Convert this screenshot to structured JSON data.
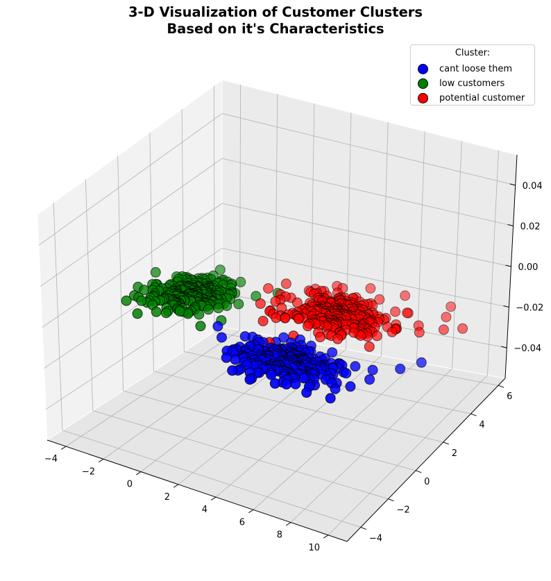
{
  "chart_data": {
    "type": "scatter",
    "projection": "3d",
    "title_line1": "3-D Visualization of Customer Clusters",
    "title_line2": "Based on it's Characteristics",
    "xlabel": "",
    "ylabel": "",
    "zlabel": "",
    "x_ticks": [
      "−4",
      "−2",
      "0",
      "2",
      "4",
      "6",
      "8",
      "10"
    ],
    "y_ticks": [
      "−4",
      "−2",
      "0",
      "2",
      "4",
      "6"
    ],
    "z_ticks": [
      "−0.04",
      "−0.02",
      "0.00",
      "0.02",
      "0.04"
    ],
    "xlim": [
      -5,
      11
    ],
    "ylim": [
      -5,
      6.5
    ],
    "zlim": [
      -0.055,
      0.055
    ],
    "grid": true,
    "legend": {
      "title": "Cluster:",
      "placement": "top-right",
      "entries": [
        "cant loose them",
        "low customers",
        "potential customer"
      ]
    },
    "series": [
      {
        "name": "cant loose them",
        "color": "#0000ff",
        "centroid": [
          5.5,
          -1.8,
          0
        ],
        "spread": [
          2.3,
          1.2
        ],
        "points": [
          [
            3.1,
            -2.4
          ],
          [
            3.8,
            -1.6
          ],
          [
            4.2,
            -2.9
          ],
          [
            4.6,
            -2.1
          ],
          [
            5.0,
            -3.2
          ],
          [
            5.3,
            -1.4
          ],
          [
            5.7,
            -2.6
          ],
          [
            6.1,
            -1.9
          ],
          [
            6.4,
            -3.0
          ],
          [
            6.8,
            -2.2
          ],
          [
            7.2,
            -1.5
          ],
          [
            7.5,
            -2.8
          ],
          [
            8.0,
            -1.2
          ],
          [
            8.6,
            -2.5
          ],
          [
            9.3,
            -1.1
          ],
          [
            4.0,
            -3.6
          ],
          [
            5.1,
            -3.8
          ],
          [
            6.2,
            -3.5
          ],
          [
            3.4,
            -1.1
          ],
          [
            4.9,
            -0.8
          ],
          [
            6.6,
            -0.7
          ],
          [
            7.8,
            -3.4
          ],
          [
            8.9,
            -0.4
          ],
          [
            9.8,
            0.3
          ],
          [
            10.2,
            1.2
          ]
        ]
      },
      {
        "name": "low customers",
        "color": "#008000",
        "centroid": [
          -1.5,
          0.5,
          0
        ],
        "spread": [
          1.6,
          1.2
        ],
        "points": [
          [
            -3.2,
            0.2
          ],
          [
            -2.8,
            -0.6
          ],
          [
            -2.4,
            0.8
          ],
          [
            -2.0,
            0.1
          ],
          [
            -1.7,
            -0.9
          ],
          [
            -1.4,
            1.1
          ],
          [
            -1.0,
            0.4
          ],
          [
            -0.6,
            -0.4
          ],
          [
            -0.2,
            1.4
          ],
          [
            0.3,
            0.6
          ],
          [
            -2.6,
            1.6
          ],
          [
            -1.2,
            2.0
          ],
          [
            0.8,
            1.9
          ],
          [
            -3.5,
            -0.8
          ],
          [
            0.9,
            -0.5
          ],
          [
            -0.5,
            2.5
          ],
          [
            -1.8,
            2.3
          ],
          [
            1.4,
            2.6
          ]
        ]
      },
      {
        "name": "potential customer",
        "color": "#ff0000",
        "centroid": [
          4.5,
          2.5,
          0
        ],
        "spread": [
          2.3,
          1.4
        ],
        "points": [
          [
            2.1,
            1.2
          ],
          [
            2.6,
            2.4
          ],
          [
            3.0,
            1.6
          ],
          [
            3.4,
            3.1
          ],
          [
            3.8,
            2.0
          ],
          [
            4.2,
            3.6
          ],
          [
            4.6,
            1.4
          ],
          [
            5.0,
            2.8
          ],
          [
            5.4,
            3.9
          ],
          [
            5.8,
            2.2
          ],
          [
            6.2,
            3.3
          ],
          [
            6.6,
            1.8
          ],
          [
            7.0,
            4.2
          ],
          [
            7.5,
            2.9
          ],
          [
            8.1,
            3.6
          ],
          [
            8.6,
            4.8
          ],
          [
            9.2,
            3.9
          ],
          [
            3.1,
            4.4
          ],
          [
            4.4,
            5.0
          ],
          [
            6.0,
            5.3
          ],
          [
            8.2,
            5.6
          ],
          [
            2.4,
            0.4
          ],
          [
            9.8,
            4.4
          ]
        ]
      }
    ]
  }
}
